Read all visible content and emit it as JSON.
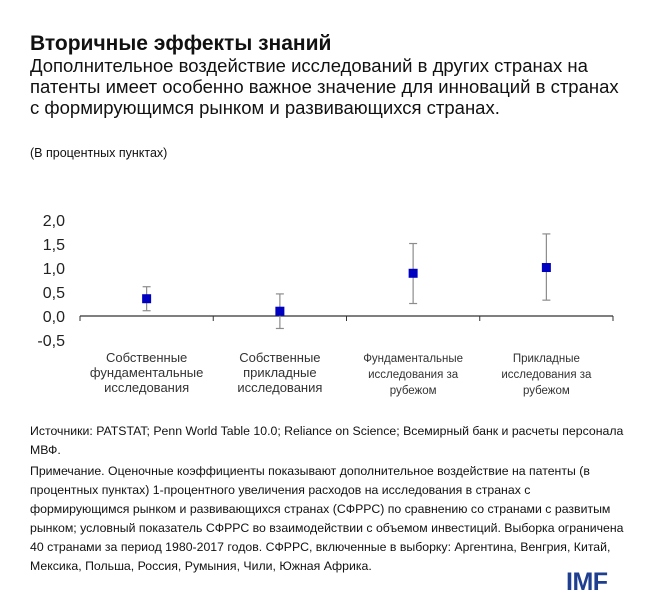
{
  "title": "Вторичные эффекты знаний",
  "subtitle": "Дополнительное воздействие исследований в других странах на патенты имеет особенно важное значение для инноваций в странах с формирующимся рынком и развивающихся странах.",
  "units": "(В процентных пунктах)",
  "chart_data": {
    "type": "scatter",
    "categories": [
      [
        "Собственные",
        "фундаментальные",
        "исследования"
      ],
      [
        "Собственные",
        "прикладные",
        "исследования"
      ],
      [
        "Фундаментальные",
        "исследования за",
        "рубежом"
      ],
      [
        "Прикладные",
        "исследования за",
        "рубежом"
      ]
    ],
    "values": [
      0.36,
      0.1,
      0.89,
      1.01
    ],
    "error_low": [
      0.11,
      -0.26,
      0.26,
      0.33
    ],
    "error_high": [
      0.61,
      0.46,
      1.51,
      1.71
    ],
    "yticks": [
      "2,0",
      "1,5",
      "1,0",
      "0,5",
      "0,0",
      "-0,5"
    ],
    "ytick_values": [
      2.0,
      1.5,
      1.0,
      0.5,
      0.0,
      -0.5
    ],
    "ylim": [
      -0.5,
      2.0
    ],
    "grid": false,
    "marker_color": "#0000c0",
    "errorbar_color": "#8c8c8c"
  },
  "notes": {
    "sources": "Источники: PATSTAT; Penn World Table 10.0; Reliance on Science; Всемирный банк и расчеты персонала МВФ.",
    "note": "Примечание. Оценочные коэффициенты показывают дополнительное воздействие на патенты (в процентных пунктах) 1-процентного увеличения расходов на исследования в странах с формирующимся рынком и развивающихся странах (СФРРС) по сравнению со странами с развитым рынком; условный показатель СФРРС во взаимодействии с объемом инвестиций. Выборка ограничена 40 странами за период 1980-2017 годов. СФРРС, включенные в выборку: Аргентина, Венгрия, Китай, Мексика, Польша, Россия, Румыния, Чили, Южная Африка."
  },
  "logo": "IMF"
}
